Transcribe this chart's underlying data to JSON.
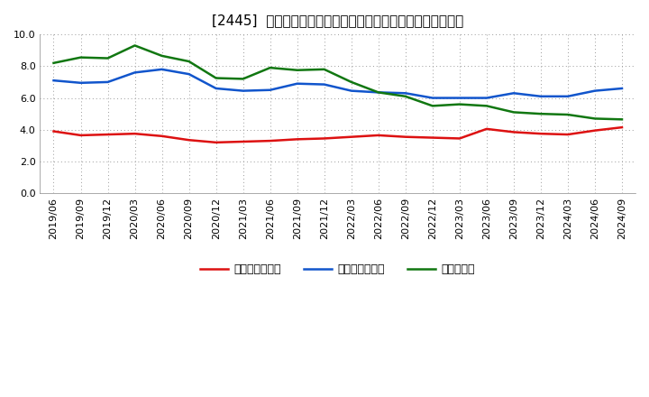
{
  "title": "[2445]  売上債権回転率、買入債務回転率、在庫回転率の推移",
  "ylim": [
    0.0,
    10.0
  ],
  "yticks": [
    0.0,
    2.0,
    4.0,
    6.0,
    8.0,
    10.0
  ],
  "dates": [
    "2019/06",
    "2019/09",
    "2019/12",
    "2020/03",
    "2020/06",
    "2020/09",
    "2020/12",
    "2021/03",
    "2021/06",
    "2021/09",
    "2021/12",
    "2022/03",
    "2022/06",
    "2022/09",
    "2022/12",
    "2023/03",
    "2023/06",
    "2023/09",
    "2023/12",
    "2024/03",
    "2024/06",
    "2024/09"
  ],
  "receivables_turnover": [
    3.9,
    3.65,
    3.7,
    3.75,
    3.6,
    3.35,
    3.2,
    3.25,
    3.3,
    3.4,
    3.45,
    3.55,
    3.65,
    3.55,
    3.5,
    3.45,
    4.05,
    3.85,
    3.75,
    3.7,
    3.95,
    4.15
  ],
  "payables_turnover": [
    7.1,
    6.95,
    7.0,
    7.6,
    7.8,
    7.5,
    6.6,
    6.45,
    6.5,
    6.9,
    6.85,
    6.45,
    6.35,
    6.3,
    6.0,
    6.0,
    6.0,
    6.3,
    6.1,
    6.1,
    6.45,
    6.6
  ],
  "inventory_turnover": [
    8.2,
    8.55,
    8.5,
    9.3,
    8.65,
    8.3,
    7.25,
    7.2,
    7.9,
    7.75,
    7.8,
    7.0,
    6.35,
    6.1,
    5.5,
    5.6,
    5.5,
    5.1,
    5.0,
    4.95,
    4.7,
    4.65
  ],
  "line_colors": {
    "receivables": "#dd1111",
    "payables": "#1155cc",
    "inventory": "#117711"
  },
  "legend_labels": {
    "receivables": "売上債権回転率",
    "payables": "買入債務回転率",
    "inventory": "在庫回転率"
  },
  "background_color": "#ffffff",
  "grid_color": "#999999",
  "title_fontsize": 11,
  "tick_fontsize": 8,
  "legend_fontsize": 9,
  "linewidth": 1.8
}
